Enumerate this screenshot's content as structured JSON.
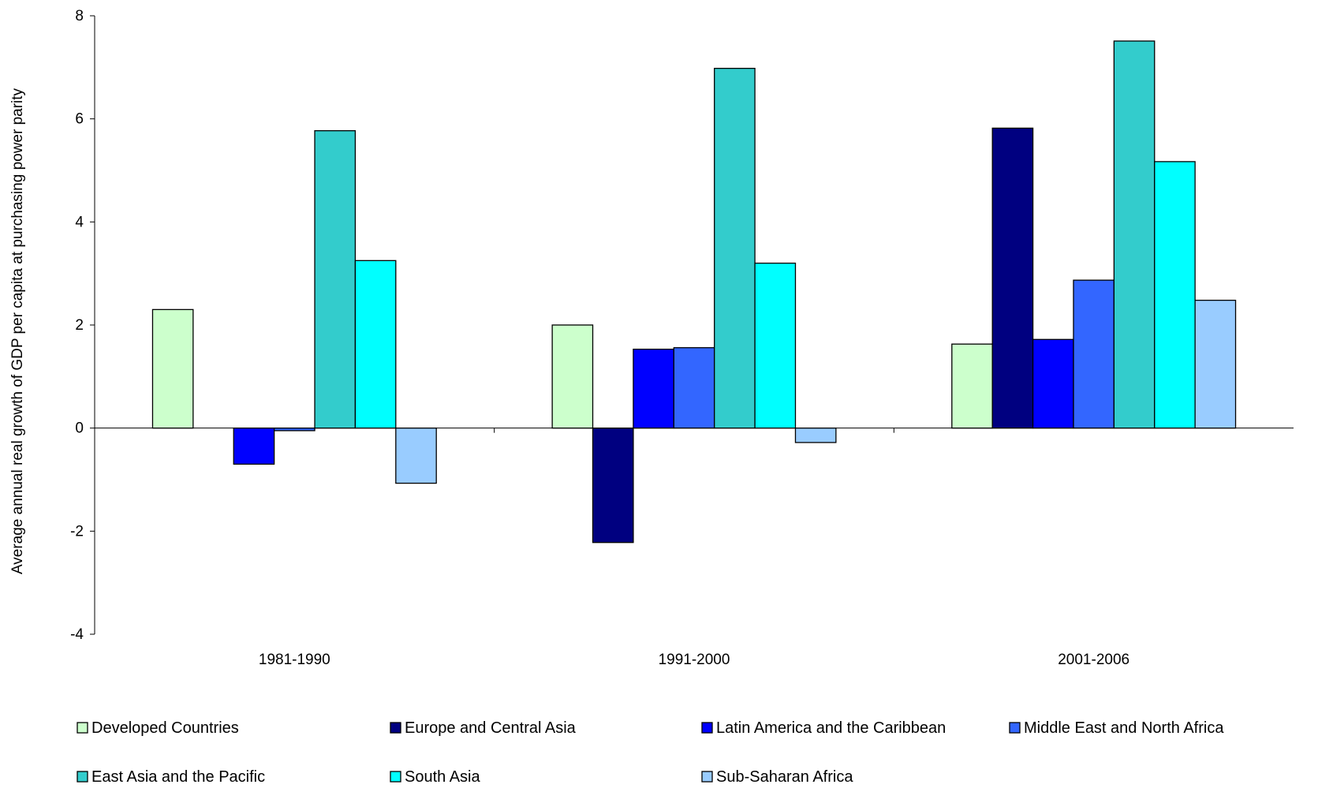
{
  "chart_data": {
    "type": "bar",
    "title": "",
    "xlabel": "",
    "ylabel": "Average annual real growth of GDP per capita at purchasing power parity",
    "ylim": [
      -4,
      8
    ],
    "yticks": [
      -4,
      -2,
      0,
      2,
      4,
      6,
      8
    ],
    "grid": false,
    "legend_position": "bottom",
    "categories": [
      "1981-1990",
      "1991-2000",
      "2001-2006"
    ],
    "series": [
      {
        "name": "Developed Countries",
        "color": "#ccffcc",
        "values": [
          2.3,
          2.0,
          1.63
        ]
      },
      {
        "name": "Europe and Central Asia",
        "color": "#000080",
        "values": [
          null,
          -2.22,
          5.82
        ]
      },
      {
        "name": "Latin America and the Caribbean",
        "color": "#0000ff",
        "values": [
          -0.7,
          1.53,
          1.72
        ]
      },
      {
        "name": "Middle East and North Africa",
        "color": "#3366ff",
        "values": [
          -0.05,
          1.56,
          2.87
        ]
      },
      {
        "name": "East Asia and the Pacific",
        "color": "#33cccc",
        "values": [
          5.77,
          6.98,
          7.51
        ]
      },
      {
        "name": "South Asia",
        "color": "#00ffff",
        "values": [
          3.25,
          3.2,
          5.17
        ]
      },
      {
        "name": "Sub-Saharan Africa",
        "color": "#99ccff",
        "values": [
          -1.07,
          -0.28,
          2.48
        ]
      }
    ]
  }
}
